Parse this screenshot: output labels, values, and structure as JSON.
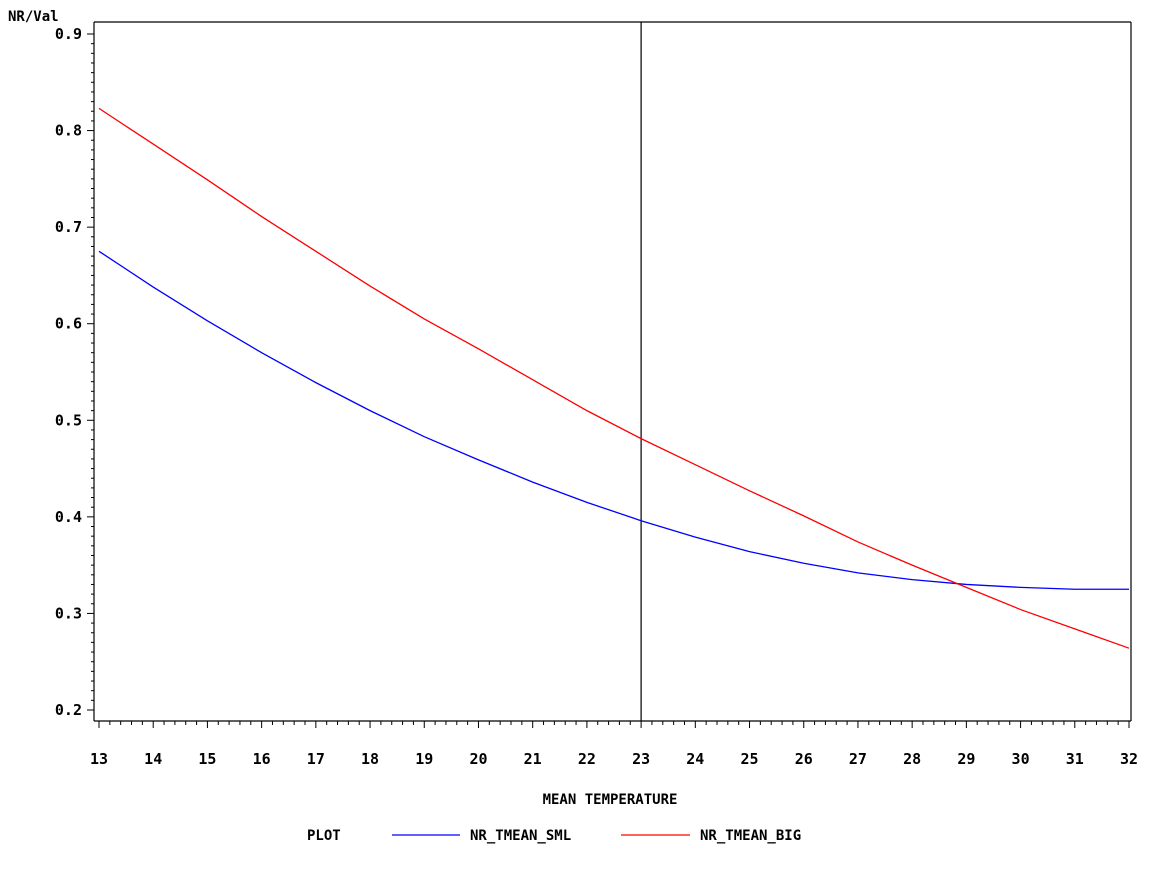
{
  "chart_data": {
    "type": "line",
    "ylabel": "NR/Val",
    "xlabel": "MEAN TEMPERATURE",
    "xlim": [
      13,
      32
    ],
    "ylim": [
      0.2,
      0.9
    ],
    "x_ticks": [
      "13",
      "14",
      "15",
      "16",
      "17",
      "18",
      "19",
      "20",
      "21",
      "22",
      "23",
      "24",
      "25",
      "26",
      "27",
      "28",
      "29",
      "30",
      "31",
      "32"
    ],
    "y_ticks": [
      "0.2",
      "0.3",
      "0.4",
      "0.5",
      "0.6",
      "0.7",
      "0.8",
      "0.9"
    ],
    "reference_line_x": 23,
    "legend": {
      "title": "PLOT",
      "placement": "bottom-center"
    },
    "grid": false,
    "x": [
      13,
      14,
      15,
      16,
      17,
      18,
      19,
      20,
      21,
      22,
      23,
      24,
      25,
      26,
      27,
      28,
      29,
      30,
      31,
      32
    ],
    "series": [
      {
        "name": "NR_TMEAN_SML",
        "color": "#0000ff",
        "values": [
          0.675,
          0.638,
          0.603,
          0.57,
          0.539,
          0.51,
          0.483,
          0.459,
          0.436,
          0.415,
          0.396,
          0.379,
          0.364,
          0.352,
          0.342,
          0.335,
          0.33,
          0.327,
          0.325,
          0.325
        ]
      },
      {
        "name": "NR_TMEAN_BIG",
        "color": "#ff0000",
        "values": [
          0.823,
          0.786,
          0.749,
          0.711,
          0.675,
          0.639,
          0.605,
          0.574,
          0.542,
          0.51,
          0.481,
          0.454,
          0.427,
          0.401,
          0.374,
          0.35,
          0.327,
          0.304,
          0.284,
          0.264
        ]
      }
    ]
  }
}
